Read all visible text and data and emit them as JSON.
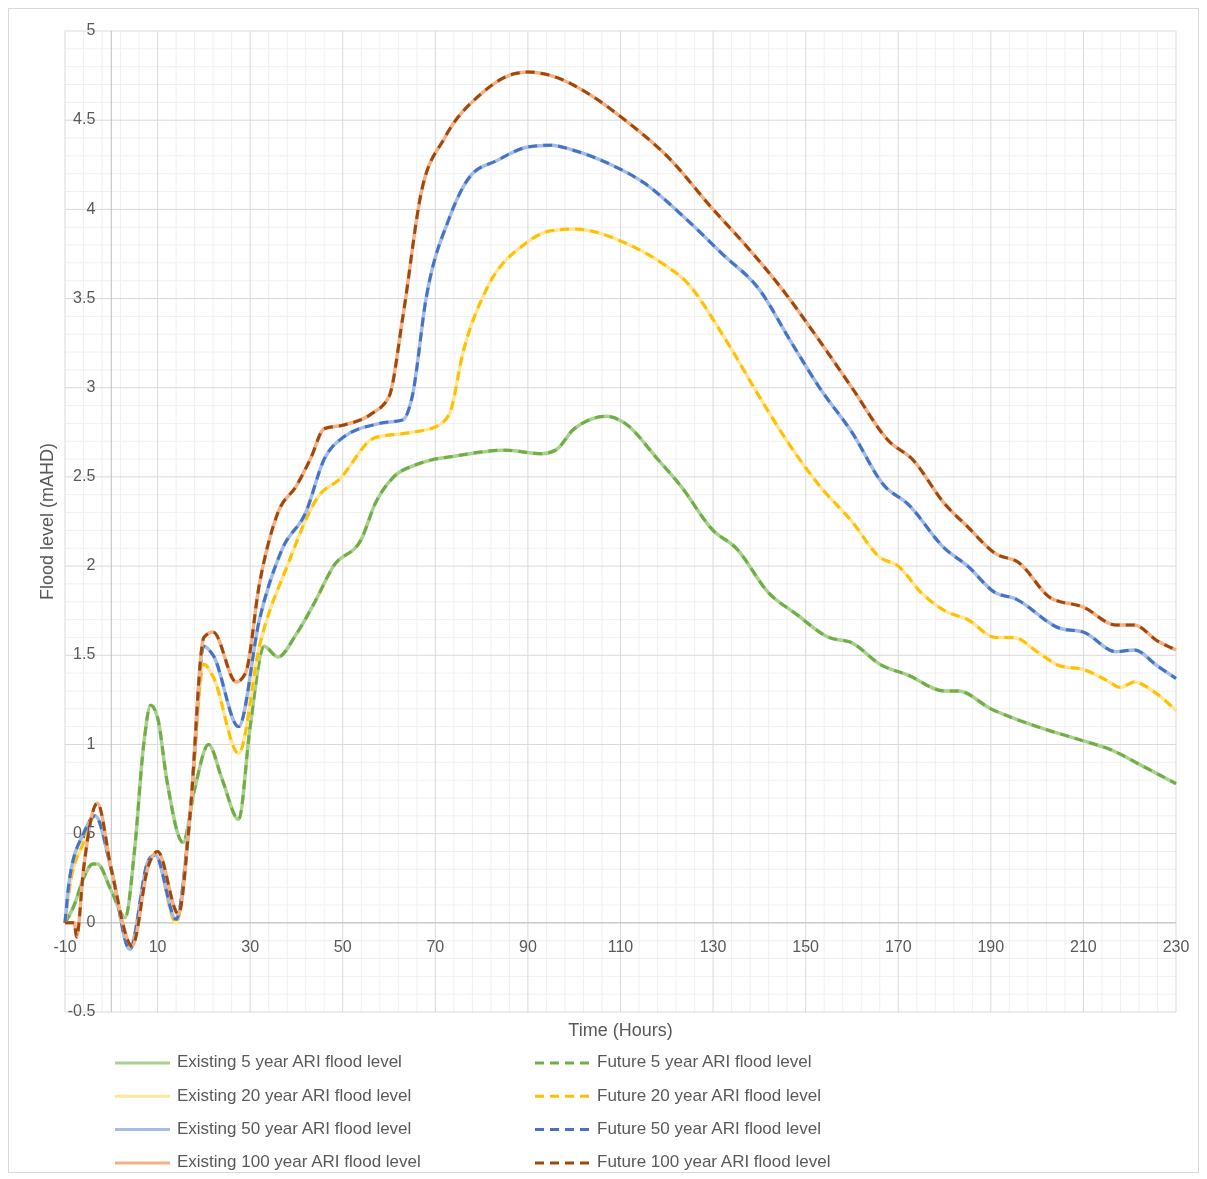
{
  "chart_data": {
    "type": "line",
    "xlabel": "Time (Hours)",
    "ylabel": "Flood level (mAHD)",
    "xlim": [
      -10,
      230
    ],
    "ylim": [
      -0.5,
      5
    ],
    "xticks": [
      -10,
      10,
      30,
      50,
      70,
      90,
      110,
      130,
      150,
      170,
      190,
      210,
      230
    ],
    "yticks": [
      -0.5,
      0,
      0.5,
      1,
      1.5,
      2,
      2.5,
      3,
      3.5,
      4,
      4.5,
      5
    ],
    "grid": true,
    "legend": "bottom",
    "series": [
      {
        "name": "Existing 5 year ARI flood level",
        "color": "#a9d18e",
        "line_style": "solid",
        "x": [
          -10,
          -8,
          -6,
          -4,
          -3,
          0,
          3,
          5,
          7,
          8.5,
          10,
          12,
          15.5,
          18,
          21,
          24,
          27.5,
          30,
          33,
          36,
          40,
          44,
          48,
          54,
          57,
          61,
          66,
          75,
          85,
          93,
          96,
          100,
          107,
          111,
          118,
          123,
          130,
          135,
          142,
          148,
          155,
          160,
          166,
          172,
          180,
          183,
          190,
          200,
          210,
          216,
          222,
          230
        ],
        "values": [
          0,
          0.1,
          0.25,
          0.33,
          0.33,
          0.18,
          0.03,
          0.4,
          1.0,
          1.22,
          1.15,
          0.8,
          0.45,
          0.75,
          1.0,
          0.8,
          0.58,
          1.1,
          1.55,
          1.49,
          1.62,
          1.8,
          2.0,
          2.15,
          2.35,
          2.5,
          2.57,
          2.62,
          2.65,
          2.63,
          2.65,
          2.77,
          2.84,
          2.8,
          2.6,
          2.45,
          2.2,
          2.1,
          1.85,
          1.73,
          1.6,
          1.57,
          1.45,
          1.39,
          1.3,
          1.3,
          1.2,
          1.1,
          1.02,
          0.97,
          0.89,
          0.78
        ]
      },
      {
        "name": "Future 5 year ARI flood level",
        "color": "#70ad47",
        "line_style": "dashed",
        "x": [
          -10,
          -8,
          -6,
          -4,
          -3,
          0,
          3,
          5,
          7,
          8.5,
          10,
          12,
          15.5,
          18,
          21,
          24,
          27.5,
          30,
          33,
          36,
          40,
          44,
          48,
          54,
          57,
          61,
          66,
          75,
          85,
          93,
          96,
          100,
          107,
          111,
          118,
          123,
          130,
          135,
          142,
          148,
          155,
          160,
          166,
          172,
          180,
          183,
          190,
          200,
          210,
          216,
          222,
          230
        ],
        "values": [
          0,
          0.1,
          0.25,
          0.33,
          0.33,
          0.18,
          0.03,
          0.4,
          1.0,
          1.22,
          1.15,
          0.8,
          0.45,
          0.75,
          1.0,
          0.8,
          0.58,
          1.1,
          1.55,
          1.49,
          1.62,
          1.8,
          2.0,
          2.15,
          2.35,
          2.5,
          2.57,
          2.62,
          2.65,
          2.63,
          2.65,
          2.77,
          2.84,
          2.8,
          2.6,
          2.45,
          2.2,
          2.1,
          1.85,
          1.73,
          1.6,
          1.57,
          1.45,
          1.39,
          1.3,
          1.3,
          1.2,
          1.1,
          1.02,
          0.97,
          0.89,
          0.78
        ]
      },
      {
        "name": "Existing 20 year ARI flood level",
        "color": "#ffe699",
        "line_style": "solid",
        "x": [
          -10,
          -9,
          -6,
          -3.5,
          0,
          4,
          8,
          9.5,
          14,
          17,
          20,
          22,
          27.5,
          32,
          38,
          45,
          49,
          57,
          65,
          70,
          73,
          76,
          81,
          89,
          95,
          100,
          112,
          120,
          124,
          132,
          140,
          146,
          153,
          160,
          166,
          170,
          175,
          180,
          185,
          191,
          195,
          200,
          205,
          210,
          215,
          218,
          221,
          225,
          230
        ],
        "values": [
          0,
          0.2,
          0.45,
          0.6,
          0.3,
          -0.13,
          0.33,
          0.38,
          0.0,
          0.6,
          1.45,
          1.38,
          0.95,
          1.55,
          2.0,
          2.4,
          2.48,
          2.72,
          2.75,
          2.78,
          2.85,
          3.2,
          3.55,
          3.8,
          3.88,
          3.89,
          3.8,
          3.68,
          3.6,
          3.3,
          2.95,
          2.7,
          2.45,
          2.25,
          2.05,
          2.0,
          1.85,
          1.75,
          1.7,
          1.6,
          1.6,
          1.52,
          1.44,
          1.42,
          1.36,
          1.32,
          1.35,
          1.3,
          1.19
        ]
      },
      {
        "name": "Future 20 year ARI flood level",
        "color": "#ffc000",
        "line_style": "dashed",
        "x": [
          -10,
          -9,
          -6,
          -3.5,
          0,
          4,
          8,
          9.5,
          14,
          17,
          20,
          22,
          27.5,
          32,
          38,
          45,
          49,
          57,
          65,
          70,
          73,
          76,
          81,
          89,
          95,
          100,
          112,
          120,
          124,
          132,
          140,
          146,
          153,
          160,
          166,
          170,
          175,
          180,
          185,
          191,
          195,
          200,
          205,
          210,
          215,
          218,
          221,
          225,
          230
        ],
        "values": [
          0,
          0.2,
          0.45,
          0.6,
          0.3,
          -0.13,
          0.33,
          0.38,
          0.0,
          0.6,
          1.45,
          1.38,
          0.95,
          1.55,
          2.0,
          2.4,
          2.48,
          2.72,
          2.75,
          2.78,
          2.85,
          3.2,
          3.55,
          3.8,
          3.88,
          3.89,
          3.8,
          3.68,
          3.6,
          3.3,
          2.95,
          2.7,
          2.45,
          2.25,
          2.05,
          2.0,
          1.85,
          1.75,
          1.7,
          1.6,
          1.6,
          1.52,
          1.44,
          1.42,
          1.36,
          1.32,
          1.35,
          1.3,
          1.19
        ]
      },
      {
        "name": "Existing 50 year ARI flood level",
        "color": "#a4bde8",
        "line_style": "solid",
        "x": [
          -10,
          -9,
          -6,
          -3.5,
          0,
          4,
          8,
          9.5,
          14,
          17,
          20,
          22,
          27.5,
          32,
          37,
          42,
          46,
          50,
          58,
          63,
          65,
          68,
          73,
          78,
          83,
          90,
          95,
          100,
          108,
          115,
          124,
          132,
          140,
          147,
          153,
          160,
          167,
          172,
          180,
          185,
          191,
          195,
          205,
          210,
          217,
          221,
          226,
          230
        ],
        "values": [
          0,
          0.25,
          0.5,
          0.6,
          0.3,
          -0.15,
          0.35,
          0.38,
          0.02,
          0.6,
          1.55,
          1.5,
          1.1,
          1.7,
          2.1,
          2.3,
          2.6,
          2.72,
          2.8,
          2.82,
          2.95,
          3.5,
          3.95,
          4.2,
          4.27,
          4.35,
          4.36,
          4.33,
          4.25,
          4.15,
          3.95,
          3.75,
          3.55,
          3.25,
          3.0,
          2.75,
          2.45,
          2.35,
          2.1,
          2.0,
          1.85,
          1.82,
          1.65,
          1.63,
          1.52,
          1.53,
          1.44,
          1.37
        ]
      },
      {
        "name": "Future 50 year ARI flood level",
        "color": "#4472c4",
        "line_style": "dashed",
        "x": [
          -10,
          -9,
          -6,
          -3.5,
          0,
          4,
          8,
          9.5,
          14,
          17,
          20,
          22,
          27.5,
          32,
          37,
          42,
          46,
          50,
          58,
          63,
          65,
          68,
          73,
          78,
          83,
          90,
          95,
          100,
          108,
          115,
          124,
          132,
          140,
          147,
          153,
          160,
          167,
          172,
          180,
          185,
          191,
          195,
          205,
          210,
          217,
          221,
          226,
          230
        ],
        "values": [
          0,
          0.25,
          0.5,
          0.6,
          0.3,
          -0.15,
          0.35,
          0.38,
          0.02,
          0.6,
          1.55,
          1.5,
          1.1,
          1.7,
          2.1,
          2.3,
          2.6,
          2.72,
          2.8,
          2.82,
          2.95,
          3.5,
          3.95,
          4.2,
          4.27,
          4.35,
          4.36,
          4.33,
          4.25,
          4.15,
          3.95,
          3.75,
          3.55,
          3.25,
          3.0,
          2.75,
          2.45,
          2.35,
          2.1,
          2.0,
          1.85,
          1.82,
          1.65,
          1.63,
          1.52,
          1.53,
          1.44,
          1.37
        ]
      },
      {
        "name": "Existing 100 year ARI flood level",
        "color": "#f4b183",
        "line_style": "solid",
        "x": [
          -10,
          -8,
          -7.5,
          -6,
          -3,
          0,
          4.5,
          8,
          10,
          14.5,
          17,
          20,
          22,
          27,
          29,
          32,
          36,
          40,
          43,
          46,
          50,
          56,
          60,
          63,
          67,
          72,
          80,
          87,
          90,
          95,
          103,
          111,
          120,
          130,
          137,
          145,
          152,
          160,
          168,
          173,
          180,
          185,
          191,
          196,
          203,
          210,
          217,
          221,
          226,
          230
        ],
        "values": [
          0,
          0,
          -0.08,
          0.3,
          0.67,
          0.3,
          -0.13,
          0.32,
          0.4,
          0.05,
          0.6,
          1.6,
          1.63,
          1.35,
          1.4,
          1.9,
          2.3,
          2.45,
          2.6,
          2.77,
          2.79,
          2.85,
          2.95,
          3.4,
          4.1,
          4.4,
          4.65,
          4.76,
          4.77,
          4.75,
          4.65,
          4.5,
          4.3,
          4.0,
          3.8,
          3.55,
          3.3,
          3.0,
          2.7,
          2.6,
          2.35,
          2.22,
          2.07,
          2.02,
          1.82,
          1.77,
          1.67,
          1.67,
          1.58,
          1.53
        ]
      },
      {
        "name": "Future 100 year ARI flood level",
        "color": "#9e480e",
        "line_style": "dashed",
        "x": [
          -10,
          -8,
          -7.5,
          -6,
          -3,
          0,
          4.5,
          8,
          10,
          14.5,
          17,
          20,
          22,
          27,
          29,
          32,
          36,
          40,
          43,
          46,
          50,
          56,
          60,
          63,
          67,
          72,
          80,
          87,
          90,
          95,
          103,
          111,
          120,
          130,
          137,
          145,
          152,
          160,
          168,
          173,
          180,
          185,
          191,
          196,
          203,
          210,
          217,
          221,
          226,
          230
        ],
        "values": [
          0,
          0,
          -0.08,
          0.3,
          0.67,
          0.3,
          -0.13,
          0.32,
          0.4,
          0.05,
          0.6,
          1.6,
          1.63,
          1.35,
          1.4,
          1.9,
          2.3,
          2.45,
          2.6,
          2.77,
          2.79,
          2.85,
          2.95,
          3.4,
          4.1,
          4.4,
          4.65,
          4.76,
          4.77,
          4.75,
          4.65,
          4.5,
          4.3,
          4.0,
          3.8,
          3.55,
          3.3,
          3.0,
          2.7,
          2.6,
          2.35,
          2.22,
          2.07,
          2.02,
          1.82,
          1.77,
          1.67,
          1.67,
          1.58,
          1.53
        ]
      }
    ]
  }
}
